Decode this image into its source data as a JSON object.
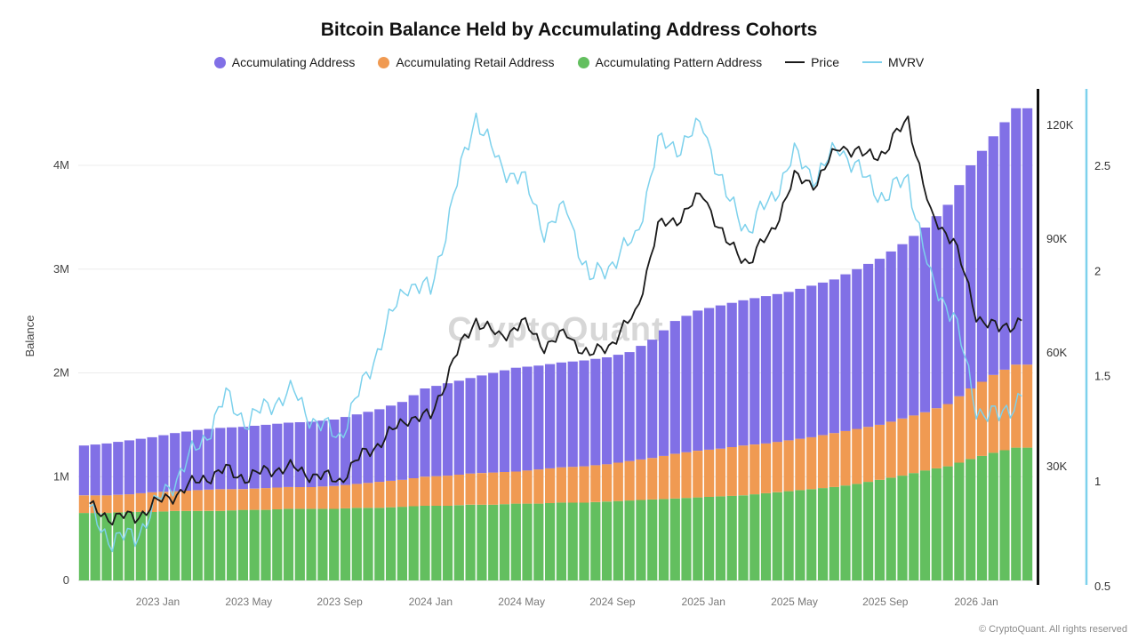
{
  "page": {
    "title": "Bitcoin Balance Held by Accumulating Address Cohorts",
    "watermark": "CryptoQuant",
    "footer": "© CryptoQuant. All rights reserved"
  },
  "legend": {
    "items": [
      {
        "label": "Accumulating Address",
        "color": "#8170e6",
        "swatch": "dot"
      },
      {
        "label": "Accumulating Retail Address",
        "color": "#f09a52",
        "swatch": "dot"
      },
      {
        "label": "Accumulating Pattern Address",
        "color": "#63bf5f",
        "swatch": "dot"
      },
      {
        "label": "Price",
        "color": "#1a1a1a",
        "swatch": "line"
      },
      {
        "label": "MVRV",
        "color": "#7dd1ec",
        "swatch": "line"
      }
    ]
  },
  "chart_data": {
    "type": "bar",
    "title": "Bitcoin Balance Held by Accumulating Address Cohorts",
    "ylabel": "Balance",
    "x": [
      "2022-10",
      "2022-11",
      "2022-12",
      "2023-01",
      "2023-02",
      "2023-03",
      "2023-04",
      "2023-05",
      "2023-06",
      "2023-07",
      "2023-08",
      "2023-09",
      "2023-10",
      "2023-11",
      "2023-12",
      "2024-01",
      "2024-02",
      "2024-03",
      "2024-04",
      "2024-05",
      "2024-06",
      "2024-07",
      "2024-08",
      "2024-09",
      "2024-10",
      "2024-11",
      "2024-12",
      "2025-01",
      "2025-02",
      "2025-03",
      "2025-04",
      "2025-05",
      "2025-06",
      "2025-07",
      "2025-08",
      "2025-09",
      "2025-10",
      "2025-11",
      "2025-12",
      "2026-01",
      "2026-02",
      "2026-03"
    ],
    "series": [
      {
        "name": "Accumulating Pattern Address",
        "type": "bar",
        "axis": "balance",
        "unit": "M BTC",
        "color": "#63bf5f",
        "values": [
          0.65,
          0.65,
          0.66,
          0.66,
          0.67,
          0.67,
          0.67,
          0.68,
          0.68,
          0.69,
          0.69,
          0.69,
          0.7,
          0.7,
          0.71,
          0.72,
          0.72,
          0.73,
          0.73,
          0.74,
          0.74,
          0.75,
          0.75,
          0.76,
          0.77,
          0.78,
          0.79,
          0.8,
          0.81,
          0.82,
          0.84,
          0.86,
          0.88,
          0.9,
          0.93,
          0.97,
          1.01,
          1.06,
          1.1,
          1.17,
          1.23,
          1.28
        ]
      },
      {
        "name": "Accumulating Retail Address",
        "type": "bar",
        "axis": "balance",
        "unit": "M BTC",
        "color": "#f09a52",
        "values": [
          0.17,
          0.17,
          0.17,
          0.19,
          0.19,
          0.2,
          0.21,
          0.2,
          0.21,
          0.21,
          0.21,
          0.22,
          0.23,
          0.25,
          0.26,
          0.28,
          0.29,
          0.3,
          0.31,
          0.31,
          0.33,
          0.34,
          0.35,
          0.36,
          0.38,
          0.4,
          0.43,
          0.45,
          0.46,
          0.48,
          0.48,
          0.49,
          0.5,
          0.52,
          0.53,
          0.53,
          0.55,
          0.56,
          0.6,
          0.68,
          0.75,
          0.8
        ]
      },
      {
        "name": "Accumulating Address",
        "type": "bar",
        "axis": "balance",
        "unit": "M BTC",
        "color": "#8170e6",
        "values": [
          0.48,
          0.5,
          0.52,
          0.53,
          0.56,
          0.58,
          0.59,
          0.6,
          0.61,
          0.62,
          0.63,
          0.64,
          0.67,
          0.7,
          0.75,
          0.85,
          0.89,
          0.92,
          0.96,
          1.0,
          1.0,
          1.01,
          1.02,
          1.03,
          1.05,
          1.14,
          1.28,
          1.35,
          1.38,
          1.4,
          1.42,
          1.43,
          1.46,
          1.48,
          1.54,
          1.6,
          1.68,
          1.78,
          1.92,
          2.15,
          2.3,
          2.47
        ]
      },
      {
        "name": "Price",
        "type": "line",
        "axis": "price",
        "unit": "K USD",
        "color": "#1a1a1a",
        "values": [
          19.2,
          16.5,
          16.8,
          20.5,
          23.5,
          27,
          29,
          27,
          29.5,
          29.5,
          27.5,
          26.5,
          33,
          37.5,
          43,
          43,
          58,
          69,
          64,
          68,
          62,
          65,
          59,
          63,
          70,
          93,
          96,
          102,
          89,
          84,
          92,
          106,
          105,
          115,
          112,
          113,
          122,
          96,
          90,
          70,
          66,
          69
        ]
      },
      {
        "name": "MVRV",
        "type": "line",
        "axis": "mvrv",
        "unit": "ratio",
        "color": "#7dd1ec",
        "values": [
          0.85,
          0.72,
          0.74,
          0.9,
          1.05,
          1.2,
          1.4,
          1.28,
          1.38,
          1.42,
          1.27,
          1.22,
          1.45,
          1.72,
          1.95,
          1.9,
          2.35,
          2.75,
          2.5,
          2.45,
          2.2,
          2.3,
          1.95,
          2.05,
          2.15,
          2.6,
          2.6,
          2.7,
          2.35,
          2.2,
          2.35,
          2.55,
          2.45,
          2.6,
          2.45,
          2.35,
          2.45,
          1.95,
          1.8,
          1.35,
          1.3,
          1.42
        ]
      }
    ],
    "axes": {
      "balance": {
        "label": "Balance",
        "range": [
          0,
          4.74
        ],
        "ticks": [
          {
            "v": 0,
            "label": "0"
          },
          {
            "v": 1,
            "label": "1M"
          },
          {
            "v": 2,
            "label": "2M"
          },
          {
            "v": 3,
            "label": "3M"
          },
          {
            "v": 4,
            "label": "4M"
          }
        ]
      },
      "price": {
        "range": [
          0,
          130
        ],
        "ticks": [
          {
            "v": 30,
            "label": "30K"
          },
          {
            "v": 60,
            "label": "60K"
          },
          {
            "v": 90,
            "label": "90K"
          },
          {
            "v": 120,
            "label": "120K"
          }
        ]
      },
      "mvrv": {
        "range": [
          0.5,
          2.85
        ],
        "ticks": [
          {
            "v": 0.5,
            "label": "0.5"
          },
          {
            "v": 1,
            "label": "1"
          },
          {
            "v": 1.5,
            "label": "1.5"
          },
          {
            "v": 2,
            "label": "2"
          },
          {
            "v": 2.5,
            "label": "2.5"
          }
        ]
      },
      "x": {
        "ticks": [
          {
            "i": 3,
            "label": "2023 Jan"
          },
          {
            "i": 7,
            "label": "2023 May"
          },
          {
            "i": 11,
            "label": "2023 Sep"
          },
          {
            "i": 15,
            "label": "2024 Jan"
          },
          {
            "i": 19,
            "label": "2024 May"
          },
          {
            "i": 23,
            "label": "2024 Sep"
          },
          {
            "i": 27,
            "label": "2025 Jan"
          },
          {
            "i": 31,
            "label": "2025 May"
          },
          {
            "i": 35,
            "label": "2025 Sep"
          },
          {
            "i": 39,
            "label": "2026 Jan"
          }
        ]
      }
    },
    "legend_position": "top",
    "grid": "horizontal-only"
  }
}
